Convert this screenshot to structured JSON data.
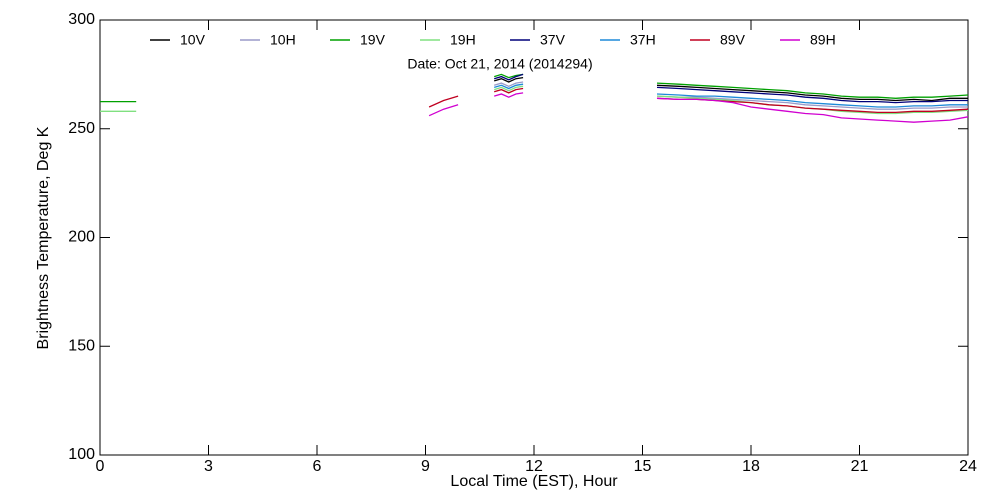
{
  "chart_data": {
    "type": "line",
    "title": "Date: Oct 21, 2014 (2014294)",
    "x_label": "Local Time (EST), Hour",
    "y_label": "Brightness Temperature, Deg K",
    "x": [
      0,
      0.5,
      1,
      5,
      9.1,
      9.5,
      9.9,
      10.5,
      10.9,
      11.1,
      11.3,
      11.5,
      11.7,
      13.5,
      15.4,
      16,
      16.5,
      17,
      17.5,
      18,
      18.5,
      19,
      19.5,
      20,
      20.5,
      21,
      21.5,
      22,
      22.5,
      23,
      23.5,
      24
    ],
    "xlim": [
      0,
      24
    ],
    "xticks": [
      0,
      3,
      6,
      9,
      12,
      15,
      18,
      21,
      24
    ],
    "ylim": [
      100,
      300
    ],
    "yticks": [
      100,
      150,
      200,
      250,
      300
    ],
    "series": [
      {
        "name": "10V",
        "color": "#000000",
        "values": [
          null,
          null,
          null,
          null,
          null,
          null,
          null,
          null,
          272,
          273,
          271.5,
          273,
          273.5,
          null,
          270,
          269.5,
          269,
          268.5,
          268,
          267.5,
          267,
          266.5,
          265.5,
          265,
          264,
          263.5,
          263.5,
          263,
          263.5,
          263,
          264,
          264
        ]
      },
      {
        "name": "10H",
        "color": "#9a9ac8",
        "values": [
          null,
          null,
          null,
          null,
          null,
          null,
          null,
          null,
          270,
          271,
          269.5,
          271,
          271.5,
          null,
          265,
          264.5,
          264.5,
          264,
          263.5,
          263,
          262.5,
          262,
          261,
          260.5,
          260,
          259.5,
          259,
          259,
          259.5,
          259.5,
          260,
          260
        ]
      },
      {
        "name": "19V",
        "color": "#00a000",
        "values": [
          262.5,
          262.5,
          262.5,
          null,
          null,
          null,
          null,
          null,
          274,
          275,
          273.5,
          274.5,
          275,
          null,
          271,
          270.5,
          270,
          269.5,
          269,
          268.5,
          268,
          267.5,
          266.5,
          266,
          265,
          264.5,
          264.5,
          264,
          264.5,
          264.5,
          265,
          265.5
        ]
      },
      {
        "name": "19H",
        "color": "#80e080",
        "values": [
          258,
          258,
          258,
          null,
          null,
          null,
          null,
          null,
          268,
          269,
          267.5,
          269,
          269.5,
          null,
          265,
          264.5,
          264,
          263.5,
          263,
          262,
          261,
          260.5,
          259.5,
          259,
          258,
          257.5,
          257,
          257,
          257.5,
          257.5,
          258,
          258.5
        ]
      },
      {
        "name": "37V",
        "color": "#00007a",
        "values": [
          null,
          null,
          null,
          null,
          null,
          null,
          null,
          null,
          273,
          274,
          272.5,
          274,
          275,
          null,
          269,
          268.5,
          268,
          267.5,
          267,
          266.5,
          266,
          265.5,
          264.5,
          264,
          263,
          262.5,
          262.5,
          262,
          262.5,
          262.5,
          263,
          263
        ]
      },
      {
        "name": "37H",
        "color": "#1e8ad8",
        "values": [
          null,
          null,
          null,
          null,
          null,
          null,
          null,
          null,
          269,
          270,
          268.5,
          270,
          270.5,
          null,
          266,
          265.5,
          265,
          265,
          264.5,
          264,
          263.5,
          263,
          262,
          261.5,
          261,
          260.5,
          260,
          260,
          260.5,
          260.5,
          261,
          261
        ]
      },
      {
        "name": "89V",
        "color": "#c00020",
        "values": [
          null,
          null,
          null,
          null,
          260,
          263,
          265,
          null,
          267,
          268,
          266.5,
          268,
          268.5,
          null,
          264,
          263.5,
          263.5,
          263,
          262.5,
          262,
          261,
          260.5,
          259.5,
          259,
          258.5,
          258,
          257.5,
          257.5,
          258,
          258,
          258.5,
          259
        ]
      },
      {
        "name": "89H",
        "color": "#d000d0",
        "values": [
          null,
          null,
          null,
          null,
          256,
          259,
          261,
          null,
          265,
          266,
          264.5,
          266,
          266.5,
          null,
          264,
          263.5,
          263.5,
          263,
          262,
          260,
          259,
          258,
          257,
          256.5,
          255,
          254.5,
          254,
          253.5,
          253,
          253.5,
          254,
          255.5
        ]
      }
    ]
  }
}
